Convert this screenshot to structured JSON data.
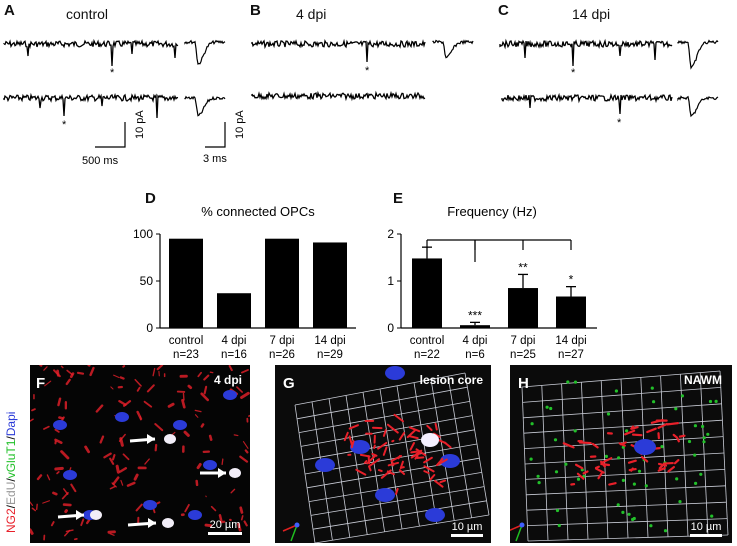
{
  "panels": {
    "A": {
      "letter": "A",
      "condition": "control",
      "scale_pa": "10 pA",
      "scale_ms": "500 ms",
      "scale_pa2": "10 pA",
      "scale_ms2": "3 ms",
      "markers": [
        "*",
        "*"
      ]
    },
    "B": {
      "letter": "B",
      "condition": "4 dpi",
      "markers": [
        "*"
      ]
    },
    "C": {
      "letter": "C",
      "condition": "14 dpi",
      "markers": [
        "*",
        "*"
      ]
    },
    "D": {
      "letter": "D"
    },
    "E": {
      "letter": "E"
    },
    "F": {
      "letter": "F",
      "tag": "4 dpi",
      "scale": "20 µm",
      "side_label": {
        "ng2": "NG2",
        "sep1": "/",
        "edu": "EdU",
        "sep2": "/",
        "vglut": "vGluT1",
        "sep3": "/",
        "dapi": "Dapi"
      }
    },
    "G": {
      "letter": "G",
      "tag": "lesion core",
      "scale": "10 µm"
    },
    "H": {
      "letter": "H",
      "tag": "NAWM",
      "scale": "10 µm"
    }
  },
  "chart_data": [
    {
      "type": "bar",
      "title": "% connected OPCs",
      "categories": [
        "control",
        "4 dpi",
        "7 dpi",
        "14 dpi"
      ],
      "n_labels": [
        "n=23",
        "n=16",
        "n=26",
        "n=29"
      ],
      "values": [
        95,
        37,
        95,
        91
      ],
      "ylim": [
        0,
        100
      ],
      "yticks": [
        "0",
        "50",
        "100"
      ],
      "color": "#000000"
    },
    {
      "type": "bar",
      "title": "Frequency (Hz)",
      "categories": [
        "control",
        "4 dpi",
        "7 dpi",
        "14 dpi"
      ],
      "n_labels": [
        "n=22",
        "n=6",
        "n=25",
        "n=27"
      ],
      "values": [
        1.48,
        0.06,
        0.85,
        0.67
      ],
      "errors": [
        0.24,
        0.06,
        0.29,
        0.21
      ],
      "significance": [
        "",
        "***",
        "**",
        "*"
      ],
      "ylim": [
        0,
        2
      ],
      "yticks": [
        "0",
        "1",
        "2"
      ],
      "color": "#000000"
    }
  ],
  "colors": {
    "ng2": "#e8202a",
    "edu": "#cccccc",
    "vglut": "#22c02a",
    "dapi": "#2b3bd8",
    "grid": "#c9ccd6"
  }
}
